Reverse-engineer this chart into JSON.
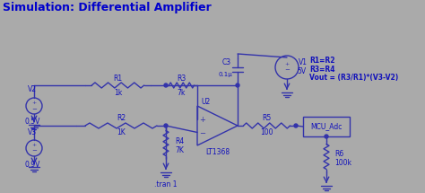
{
  "title": "Simulation: Differential Amplifier",
  "title_color": "#0000CC",
  "title_fontsize": 9,
  "bg_color": "#AAAAAA",
  "line_color": "#3333AA",
  "line_width": 1.0,
  "label_color": "#1111BB",
  "figsize": [
    4.74,
    2.15
  ],
  "dpi": 100,
  "formula_lines": [
    "R1=R2",
    "R3=R4",
    "Vout = (R3/R1)*(V3-V2)"
  ]
}
